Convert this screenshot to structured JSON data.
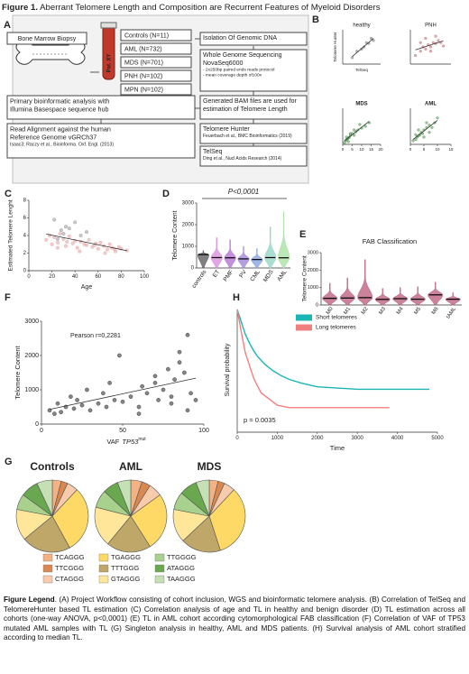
{
  "title": {
    "label": "Figure 1.",
    "text": "Aberrant Telomere Length and Composition are Recurrent Features of Myeloid Disorders"
  },
  "panel_a": {
    "letter": "A",
    "biopsy": "Bone Marrow Biopsy",
    "tube": "Pat. XY",
    "cohorts": [
      "Controls (N=11)",
      "AML (N=732)",
      "MDS (N=701)",
      "PNH (N=102)",
      "MPN (N=102)"
    ],
    "boxes": [
      {
        "lines": [
          "Isolation Of Genomic DNA"
        ]
      },
      {
        "lines": [
          "Whole Genome Sequencing",
          "NovaSeq6000",
          "- 2x250bp paired ends reads protocol",
          "- mean coverage depth of100x"
        ]
      },
      {
        "lines": [
          "Primary bioinformatic analysis with",
          "Illumina Basespace sequence hub"
        ]
      },
      {
        "lines": [
          "Read Alignment against the human",
          "Reference Genome vGRCh37",
          "Isaac3; Raczy et al., Bioinforma. Oxf. Engl. (2013)"
        ]
      },
      {
        "lines": [
          "Generated BAM files are used for",
          "estimation of Telomere Length"
        ]
      },
      {
        "lines": [
          "Telomere Hunter",
          "Feuerbach et al., BMC Bioinformatics (2019)"
        ]
      },
      {
        "lines": [
          "TelSeq",
          "Ding et al., Nucl Acids Research (2014)"
        ]
      }
    ]
  },
  "panel_b": {
    "letter": "B",
    "ylabel": "Telomere Hunter",
    "xlabel": "TelSeq",
    "plots": [
      {
        "type": "scatter",
        "title": "healthy",
        "xlim": [
          0,
          8
        ],
        "ylim": [
          0,
          8
        ],
        "series": [
          {
            "color": "#808080",
            "x": [
              2,
              3,
              4,
              4.5,
              5,
              5.5,
              6,
              6.5
            ],
            "values": [
              1.5,
              3,
              3.5,
              4,
              5,
              4.8,
              6,
              5.5
            ]
          }
        ]
      },
      {
        "type": "scatter",
        "title": "PNH",
        "xlim": [
          0,
          8
        ],
        "ylim": [
          0,
          8
        ],
        "series": [
          {
            "color": "#c0707a",
            "x": [
              1,
              2,
              2.5,
              3,
              3.5,
              4,
              4.5,
              5,
              5.5,
              6,
              3,
              4,
              5,
              2,
              6.5
            ],
            "values": [
              2,
              3,
              4,
              3.5,
              4.5,
              4,
              5,
              4.8,
              5.5,
              5,
              6,
              3,
              6.5,
              5,
              4.2
            ]
          }
        ]
      },
      {
        "type": "scatter",
        "title": "MDS",
        "xlim": [
          0,
          20
        ],
        "ylim": [
          0,
          20
        ],
        "xticks": [
          0,
          5,
          10,
          15,
          20
        ],
        "series": [
          {
            "color": "#4e9a4e",
            "x": [
              1,
              1.5,
              2,
              2.5,
              3,
              3.5,
              4,
              5,
              6,
              7,
              8,
              10,
              12,
              14,
              2,
              3,
              4,
              6,
              9
            ],
            "values": [
              1,
              2,
              2.5,
              3,
              3.5,
              4,
              5,
              6,
              5,
              7,
              8,
              9,
              10,
              12,
              4,
              1.5,
              6,
              8,
              11
            ]
          }
        ]
      },
      {
        "type": "scatter",
        "title": "AML",
        "xlim": [
          0,
          15
        ],
        "ylim": [
          0,
          15
        ],
        "xticks": [
          0,
          5,
          10,
          15
        ],
        "series": [
          {
            "color": "#4e9a4e",
            "x": [
              1,
              2,
              2.5,
              3,
              3.5,
              4,
              4.5,
              5,
              6,
              7,
              8,
              9,
              10,
              3,
              5,
              6,
              7,
              2
            ],
            "values": [
              1.5,
              2,
              3,
              3.5,
              4,
              5,
              4.5,
              6,
              7,
              8,
              7,
              9,
              11,
              6,
              3,
              9,
              5,
              4
            ]
          }
        ]
      }
    ]
  },
  "panel_c": {
    "type": "scatter",
    "letter": "C",
    "ylabel": "Estimated Telomere Lenght",
    "xlabel": "Age",
    "xlim": [
      0,
      100
    ],
    "ylim": [
      0,
      8
    ],
    "xticks": [
      0,
      20,
      40,
      60,
      80,
      100
    ],
    "yticks": [
      0,
      2,
      4,
      6,
      8
    ],
    "series": [
      {
        "color": "#9a9a9a",
        "x": [
          22,
          28,
          30,
          35,
          40,
          45,
          50,
          25,
          32
        ],
        "values": [
          5.8,
          4.6,
          4.2,
          4.8,
          5.5,
          4.0,
          4.4,
          3.6,
          5.0
        ]
      },
      {
        "color": "#e4a3a3",
        "x": [
          15,
          18,
          20,
          22,
          25,
          27,
          30,
          32,
          35,
          38,
          40,
          42,
          45,
          48,
          50,
          52,
          55,
          58,
          60,
          62,
          65,
          68,
          70,
          72,
          75,
          78,
          80,
          85,
          25,
          33,
          44,
          57,
          66,
          74
        ],
        "values": [
          3.5,
          4.0,
          3.0,
          3.8,
          3.2,
          4.2,
          3.6,
          2.8,
          3.9,
          3.1,
          3.4,
          2.6,
          3.3,
          3.0,
          2.9,
          3.5,
          2.7,
          3.1,
          2.5,
          3.2,
          2.8,
          2.4,
          3.0,
          2.6,
          2.2,
          2.7,
          2.5,
          2.3,
          2.6,
          3.3,
          2.2,
          2.9,
          2.0,
          2.5
        ]
      }
    ]
  },
  "panel_d": {
    "type": "violin",
    "letter": "D",
    "ylabel": "Telomere Content",
    "annotation": "P<0,0001",
    "categories": [
      "controls",
      "ET",
      "PMF",
      "PV",
      "CML",
      "MDS",
      "AML"
    ],
    "medians": [
      620,
      480,
      470,
      420,
      390,
      480,
      470
    ],
    "max": [
      800,
      1400,
      1300,
      1000,
      900,
      1900,
      2600
    ],
    "colors": [
      "#555555",
      "#d88ad8",
      "#b06bd0",
      "#9a80d6",
      "#7b9fe0",
      "#8fd3c2",
      "#a6e0a0"
    ],
    "ylim": [
      0,
      3000
    ],
    "yticks": [
      0,
      1000,
      2000,
      3000
    ]
  },
  "panel_e": {
    "type": "violin",
    "letter": "E",
    "title": "FAB Classification",
    "ylabel": "Telomere Content",
    "categories": [
      "M0",
      "M1",
      "M2",
      "M3",
      "M4",
      "M5",
      "M6",
      "tAML"
    ],
    "medians": [
      380,
      400,
      420,
      320,
      360,
      330,
      580,
      330
    ],
    "max": [
      1250,
      1550,
      2600,
      950,
      1000,
      1050,
      1300,
      700
    ],
    "colors": [
      "#b85a7a",
      "#b85a7a",
      "#b85a7a",
      "#b85a7a",
      "#b85a7a",
      "#b85a7a",
      "#b85a7a",
      "#b85a7a"
    ],
    "ylim": [
      0,
      3000
    ],
    "yticks": [
      0,
      1000,
      2000,
      3000
    ]
  },
  "panel_f": {
    "type": "scatter",
    "letter": "F",
    "annotation": "Pearson r=0,2281",
    "ylabel": "Telomere Content",
    "xlabel": {
      "prefix": "VAF",
      "gene": "TP53",
      "suffix": "mut"
    },
    "xlim": [
      0,
      100
    ],
    "ylim": [
      0,
      3000
    ],
    "xticks": [
      0,
      50,
      100
    ],
    "yticks": [
      0,
      1000,
      2000,
      3000
    ],
    "series": [
      {
        "color": "#222222",
        "x": [
          5,
          8,
          10,
          12,
          15,
          18,
          20,
          22,
          25,
          28,
          30,
          35,
          38,
          40,
          42,
          45,
          48,
          50,
          55,
          60,
          62,
          65,
          70,
          72,
          75,
          78,
          80,
          82,
          85,
          88,
          90,
          92,
          95,
          60,
          70,
          80,
          90,
          85
        ],
        "values": [
          400,
          300,
          600,
          350,
          500,
          800,
          450,
          700,
          550,
          1000,
          400,
          600,
          900,
          500,
          1200,
          700,
          2000,
          650,
          800,
          500,
          1100,
          900,
          1400,
          700,
          1000,
          1600,
          800,
          1300,
          1800,
          1500,
          2600,
          900,
          700,
          300,
          1200,
          600,
          400,
          2100
        ]
      }
    ]
  },
  "panel_h": {
    "type": "line",
    "letter": "H",
    "ylabel": "Survival probability",
    "xlabel": "Time",
    "annotation": "p = 0.0035",
    "xlim": [
      0,
      5000
    ],
    "ylim": [
      0,
      1
    ],
    "xticks": [
      0,
      1000,
      2000,
      3000,
      4000,
      5000
    ],
    "series": [
      {
        "name": "Short telomeres",
        "color": "#1cb5b5",
        "x": [
          0,
          100,
          200,
          300,
          400,
          500,
          700,
          900,
          1100,
          1300,
          1600,
          2000,
          2500,
          3000,
          3500,
          4000,
          4500,
          4800
        ],
        "values": [
          1,
          0.9,
          0.8,
          0.73,
          0.67,
          0.62,
          0.55,
          0.5,
          0.46,
          0.43,
          0.4,
          0.37,
          0.36,
          0.35,
          0.35,
          0.35,
          0.35,
          0.35
        ]
      },
      {
        "name": "Long telomeres",
        "color": "#f08080",
        "x": [
          0,
          100,
          200,
          300,
          400,
          500,
          600,
          800,
          1000,
          1300,
          1500,
          2000,
          2500,
          3000,
          3500,
          3800
        ],
        "values": [
          1,
          0.82,
          0.65,
          0.55,
          0.45,
          0.38,
          0.32,
          0.27,
          0.22,
          0.2,
          0.2,
          0.2,
          0.2,
          0.2,
          0.2,
          0.2
        ]
      }
    ]
  },
  "panel_g": {
    "type": "pie",
    "letter": "G",
    "motifs": [
      "TCAGGG",
      "TTCGGG",
      "CTAGGG",
      "TGAGGG",
      "TTTGGG",
      "GTAGGG",
      "TTGGGG",
      "ATAGGG",
      "TAAGGG"
    ],
    "colors": [
      "#f4b183",
      "#d9894f",
      "#f8cbad",
      "#ffd966",
      "#bfa76a",
      "#ffe699",
      "#a9d18e",
      "#6aa84f",
      "#c5e0b4"
    ],
    "pies": [
      {
        "title": "Controls",
        "values": [
          4,
          3,
          5,
          30,
          22,
          14,
          7,
          8,
          7
        ]
      },
      {
        "title": "AML",
        "values": [
          5,
          4,
          6,
          26,
          20,
          18,
          8,
          7,
          6
        ]
      },
      {
        "title": "MDS",
        "values": [
          4,
          3,
          5,
          33,
          18,
          15,
          8,
          8,
          6
        ]
      }
    ]
  },
  "legend": {
    "label": "Figure Legend",
    "text": ". (A) Project Workflow consisting of cohort inclusion, WGS and bioinformatic telomere analysis. (B) Correlation of TelSeq and TelomereHunter based TL estimation (C) Correlation analysis of age and TL in healthy and benign disorder (D) TL estimation across all cohorts (one-way ANOVA, p<0,0001) (E) TL in AML cohort according cytomorphological FAB classification (F) Correlation of VAF of TP53 mutated AML samples with TL (G) Singleton analysis in healthy, AML and MDS patients. (H) Survival analysis of AML cohort stratified according to median TL."
  }
}
